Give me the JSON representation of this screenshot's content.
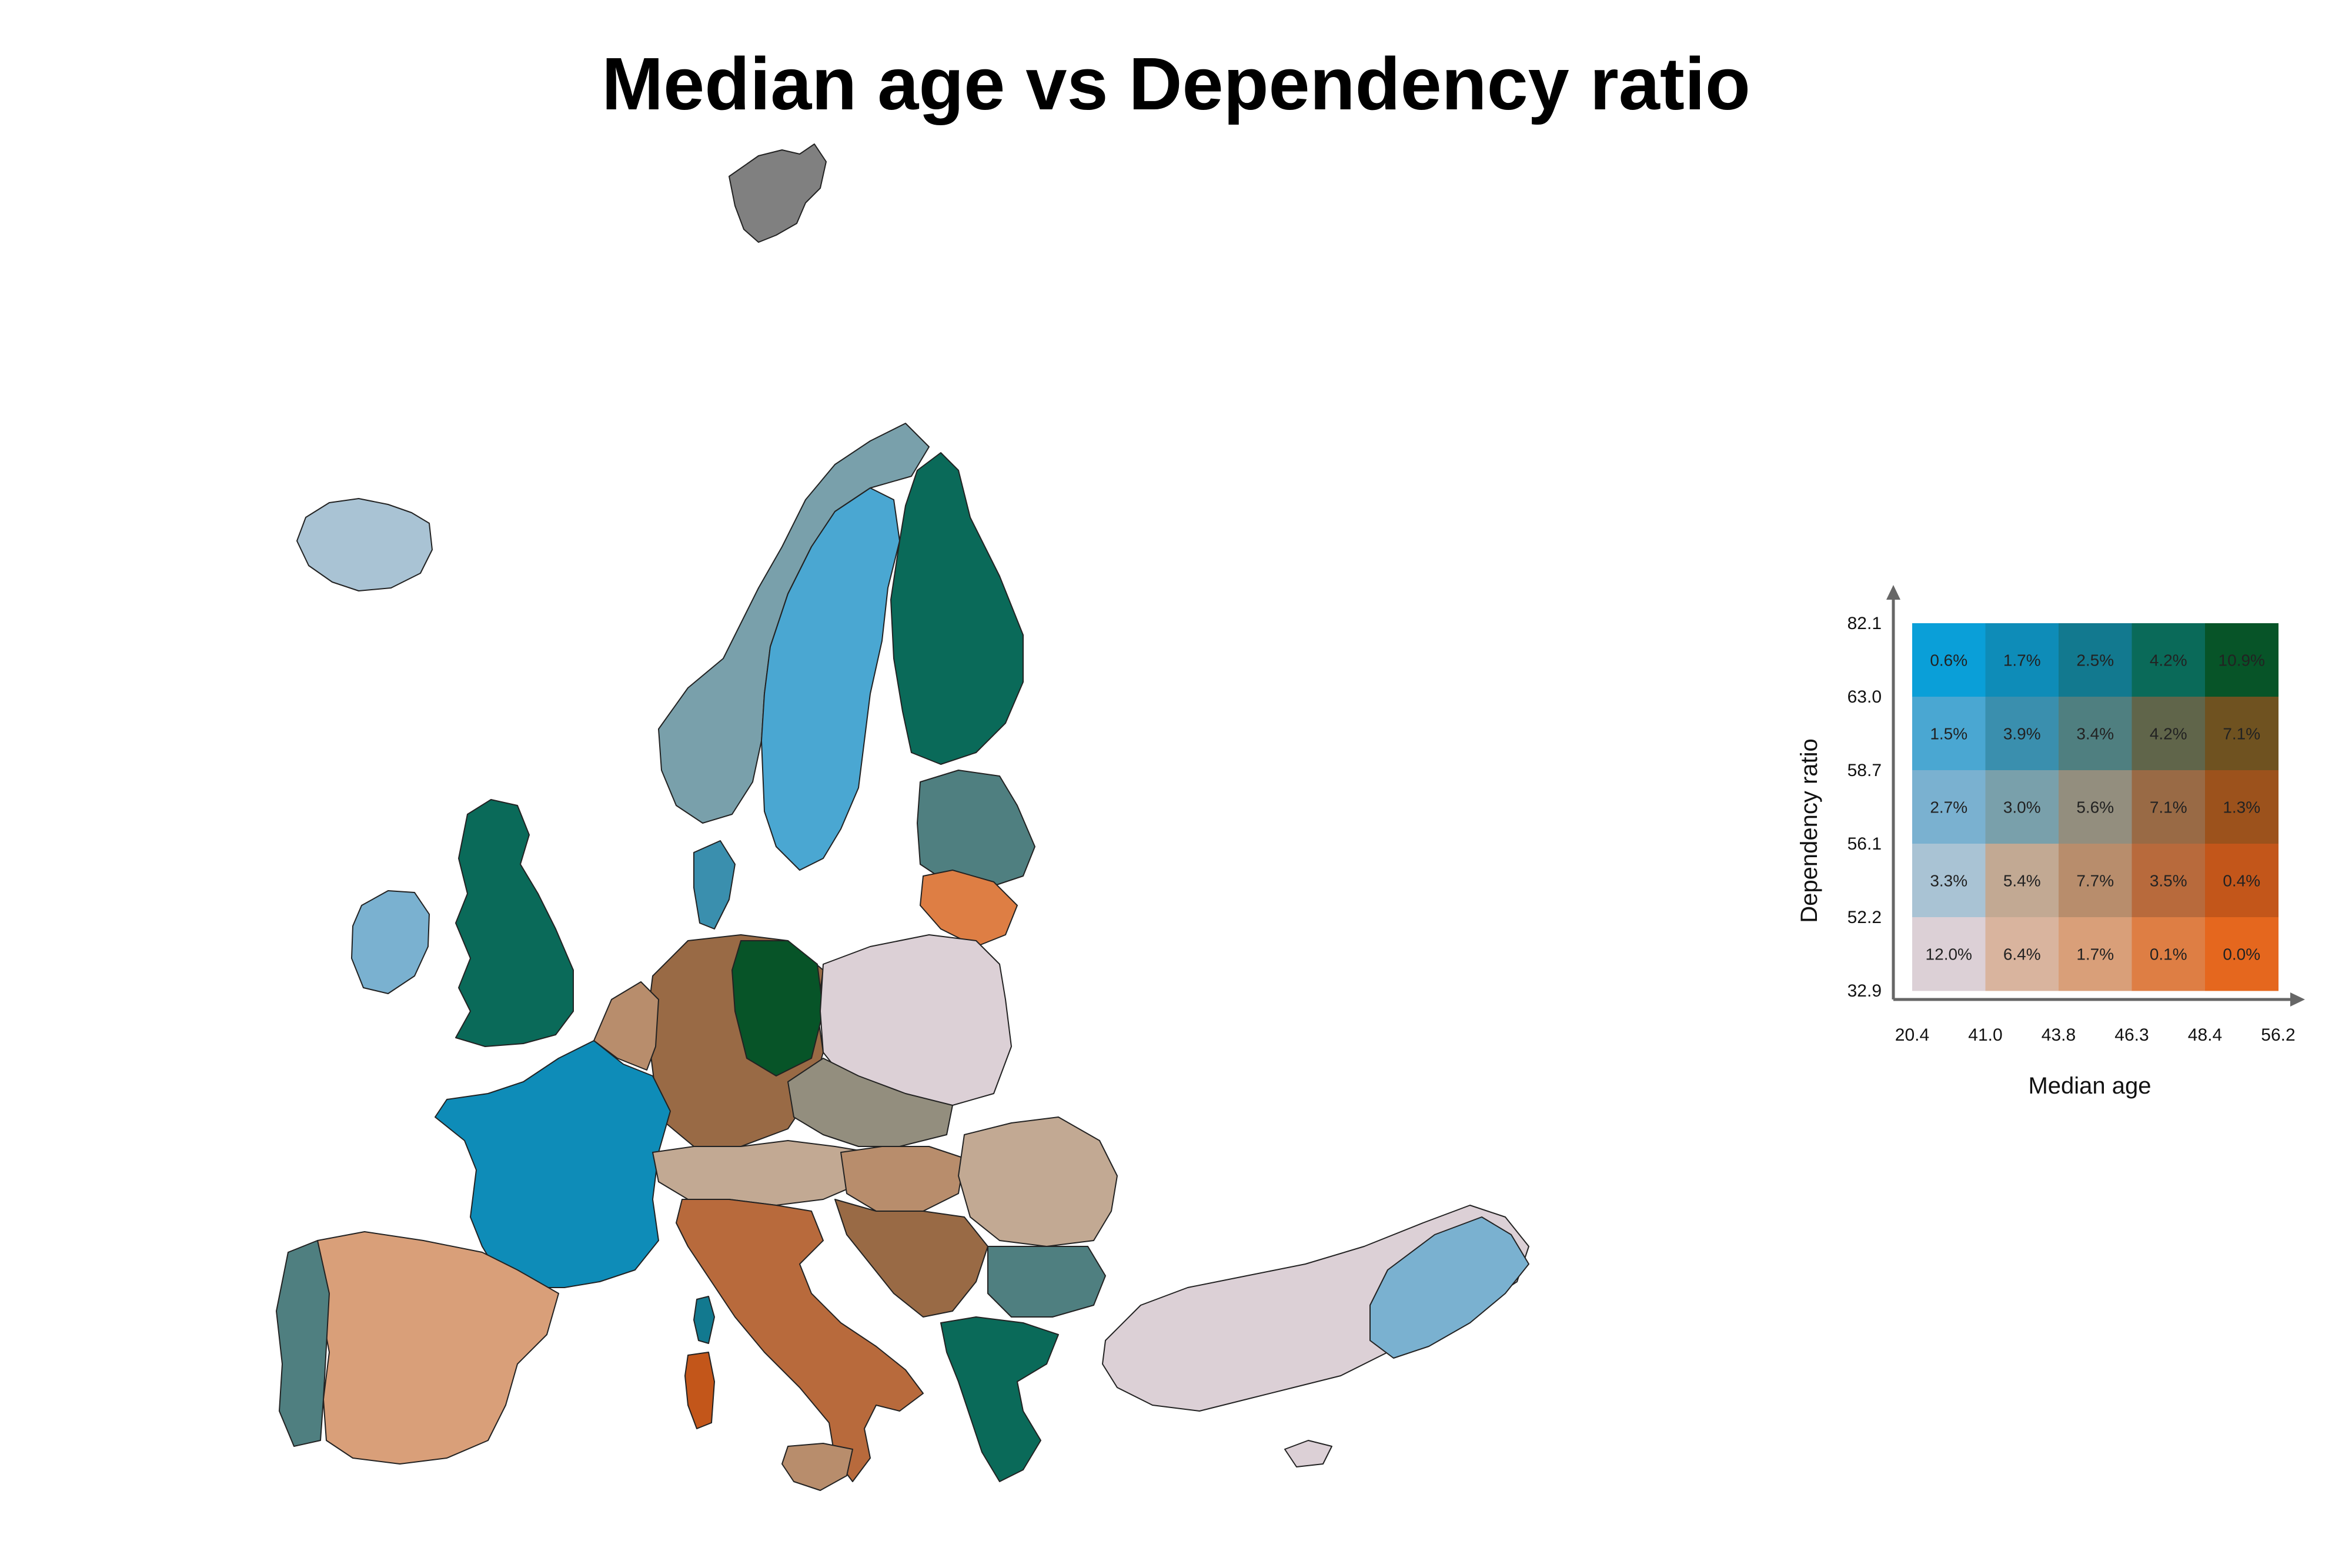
{
  "title": "Median age vs Dependency ratio",
  "legend": {
    "x_axis_label": "Median age",
    "y_axis_label": "Dependency ratio",
    "x_breaks": [
      "20.4",
      "41.0",
      "43.8",
      "46.3",
      "48.4",
      "56.2"
    ],
    "y_breaks": [
      "32.9",
      "52.2",
      "56.1",
      "58.7",
      "63.0",
      "82.1"
    ],
    "rows_top_to_bottom": [
      {
        "colors": [
          "#0a9fd8",
          "#0e8cb8",
          "#12798f",
          "#0a6a59",
          "#075428"
        ],
        "labels": [
          "0.6%",
          "1.7%",
          "2.5%",
          "4.2%",
          "10.9%"
        ]
      },
      {
        "colors": [
          "#4aa7d2",
          "#3a8fae",
          "#4f7f80",
          "#60654a",
          "#6f5220"
        ],
        "labels": [
          "1.5%",
          "3.9%",
          "3.4%",
          "4.2%",
          "7.1%"
        ]
      },
      {
        "colors": [
          "#7ab1d0",
          "#79a0ab",
          "#938e7e",
          "#996a45",
          "#9c521c"
        ],
        "labels": [
          "2.7%",
          "3.0%",
          "5.6%",
          "7.1%",
          "1.3%"
        ]
      },
      {
        "colors": [
          "#a9c3d4",
          "#c2a993",
          "#b88d6c",
          "#b86a3c",
          "#c3561a"
        ],
        "labels": [
          "3.3%",
          "5.4%",
          "7.7%",
          "3.5%",
          "0.4%"
        ]
      },
      {
        "colors": [
          "#dcd0d6",
          "#d9b49e",
          "#d99f79",
          "#de7e44",
          "#e5671e"
        ],
        "labels": [
          "12.0%",
          "6.4%",
          "1.7%",
          "0.1%",
          "0.0%"
        ]
      }
    ]
  },
  "map": {
    "nodata_color": "#808080",
    "outline_color": "#222222",
    "regions": [
      {
        "name": "svalbard",
        "color": "#808080"
      },
      {
        "name": "iceland",
        "color": "#a9c3d4"
      },
      {
        "name": "ireland",
        "color": "#7ab1d0"
      },
      {
        "name": "great-britain",
        "color": "#0a6a59"
      },
      {
        "name": "norway",
        "color": "#79a0ab"
      },
      {
        "name": "sweden",
        "color": "#4aa7d2"
      },
      {
        "name": "finland",
        "color": "#0a6a59"
      },
      {
        "name": "baltics",
        "color": "#4f7f80"
      },
      {
        "name": "lithuania",
        "color": "#de7e44"
      },
      {
        "name": "denmark",
        "color": "#3a8fae"
      },
      {
        "name": "germany",
        "color": "#996a45"
      },
      {
        "name": "germany-east",
        "color": "#075428"
      },
      {
        "name": "poland",
        "color": "#dcd0d6"
      },
      {
        "name": "benelux",
        "color": "#b88d6c"
      },
      {
        "name": "france",
        "color": "#0e8cb8"
      },
      {
        "name": "spain",
        "color": "#d99f79"
      },
      {
        "name": "portugal",
        "color": "#4f7f80"
      },
      {
        "name": "italy",
        "color": "#b86a3c"
      },
      {
        "name": "corsica",
        "color": "#12798f"
      },
      {
        "name": "sardinia",
        "color": "#c3561a"
      },
      {
        "name": "sicily",
        "color": "#b88d6c"
      },
      {
        "name": "alps",
        "color": "#c2a993"
      },
      {
        "name": "czechia-slovakia",
        "color": "#938e7e"
      },
      {
        "name": "hungary",
        "color": "#b88d6c"
      },
      {
        "name": "romania",
        "color": "#c2a993"
      },
      {
        "name": "balkans",
        "color": "#996a45"
      },
      {
        "name": "bulgaria",
        "color": "#4f7f80"
      },
      {
        "name": "greece",
        "color": "#0a6a59"
      },
      {
        "name": "turkey",
        "color": "#dcd0d6"
      },
      {
        "name": "turkey-east",
        "color": "#7ab1d0"
      },
      {
        "name": "cyprus",
        "color": "#dcd0d6"
      }
    ]
  }
}
